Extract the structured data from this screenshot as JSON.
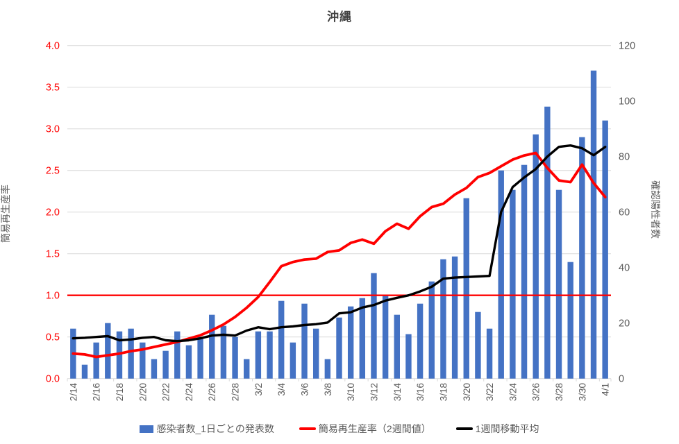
{
  "chart": {
    "title": "沖縄",
    "left_axis": {
      "title": "簡易再生産率",
      "tick_labels": [
        "0.0",
        "0.5",
        "1.0",
        "1.5",
        "2.0",
        "2.5",
        "3.0",
        "3.5",
        "4.0"
      ],
      "min": 0,
      "max": 4,
      "tick_color": "#FF0000"
    },
    "right_axis": {
      "title": "確認陽性者数",
      "tick_labels": [
        "0",
        "20",
        "40",
        "60",
        "80",
        "100",
        "120"
      ],
      "min": 0,
      "max": 120,
      "tick_color": "#595959"
    },
    "grid_color": "#D9D9D9",
    "legend": [
      {
        "label": "感染者数_1日ごとの発表数",
        "swatch": "bar",
        "color": "#4472C4"
      },
      {
        "label": "簡易再生産率（2週間値）",
        "swatch": "line",
        "color": "#FF0000"
      },
      {
        "label": "1週間移動平均",
        "swatch": "line",
        "color": "#000000"
      }
    ]
  },
  "chart_data": {
    "type": "combo-bar-line",
    "x": [
      "2/14",
      "2/15",
      "2/16",
      "2/17",
      "2/18",
      "2/19",
      "2/20",
      "2/21",
      "2/22",
      "2/23",
      "2/24",
      "2/25",
      "2/26",
      "2/27",
      "2/28",
      "3/1",
      "3/2",
      "3/3",
      "3/4",
      "3/5",
      "3/6",
      "3/7",
      "3/8",
      "3/9",
      "3/10",
      "3/11",
      "3/12",
      "3/13",
      "3/14",
      "3/15",
      "3/16",
      "3/17",
      "3/18",
      "3/19",
      "3/20",
      "3/21",
      "3/22",
      "3/23",
      "3/24",
      "3/25",
      "3/26",
      "3/27",
      "3/28",
      "3/29",
      "3/30",
      "3/31",
      "4/1"
    ],
    "x_tick_labels": [
      "2/14",
      "2/16",
      "2/18",
      "2/20",
      "2/22",
      "2/24",
      "2/26",
      "2/28",
      "3/2",
      "3/4",
      "3/6",
      "3/8",
      "3/10",
      "3/12",
      "3/14",
      "3/16",
      "3/18",
      "3/20",
      "3/22",
      "3/24",
      "3/26",
      "3/28",
      "3/30",
      "4/1"
    ],
    "x_tick_label_interval": 2,
    "title": "沖縄",
    "grid": true,
    "left_ylim": [
      0,
      4
    ],
    "right_ylim": [
      0,
      120
    ],
    "baseline": {
      "axis": "left",
      "value": 1.0,
      "color": "#FF0000"
    },
    "series": [
      {
        "name": "感染者数_1日ごとの発表数",
        "type": "bar",
        "axis": "right",
        "color": "#4472C4",
        "values": [
          18,
          5,
          13,
          20,
          17,
          18,
          13,
          7,
          10,
          17,
          12,
          15,
          23,
          19,
          15,
          7,
          17,
          17,
          28,
          13,
          27,
          18,
          7,
          22,
          26,
          29,
          38,
          30,
          23,
          16,
          27,
          35,
          43,
          44,
          65,
          24,
          18,
          75,
          68,
          77,
          88,
          98,
          68,
          42,
          87,
          111,
          93
        ]
      },
      {
        "name": "簡易再生産率（2週間値）",
        "type": "line",
        "axis": "left",
        "color": "#FF0000",
        "values": [
          0.3,
          0.29,
          0.26,
          0.28,
          0.3,
          0.33,
          0.35,
          0.38,
          0.41,
          0.44,
          0.48,
          0.52,
          0.58,
          0.65,
          0.74,
          0.85,
          0.98,
          1.16,
          1.35,
          1.4,
          1.43,
          1.44,
          1.52,
          1.54,
          1.63,
          1.67,
          1.62,
          1.77,
          1.86,
          1.8,
          1.95,
          2.06,
          2.1,
          2.21,
          2.29,
          2.42,
          2.47,
          2.55,
          2.63,
          2.68,
          2.71,
          2.53,
          2.38,
          2.36,
          2.57,
          2.35,
          2.18
        ]
      },
      {
        "name": "1週間移動平均",
        "type": "line",
        "axis": "right",
        "color": "#000000",
        "values": [
          14.5,
          14.7,
          15.0,
          15.3,
          13.8,
          14.1,
          14.7,
          15.0,
          13.8,
          13.5,
          13.8,
          14.5,
          15.5,
          15.8,
          15.5,
          17.3,
          18.5,
          17.8,
          18.5,
          18.8,
          19.3,
          19.6,
          20.2,
          23.5,
          23.9,
          25.6,
          26.5,
          28.1,
          29.1,
          30.0,
          31.4,
          33.1,
          36.0,
          36.4,
          36.6,
          36.8,
          37.0,
          60,
          69,
          72.5,
          75.5,
          80,
          83.5,
          84,
          83,
          80.5,
          83.5
        ]
      }
    ]
  }
}
